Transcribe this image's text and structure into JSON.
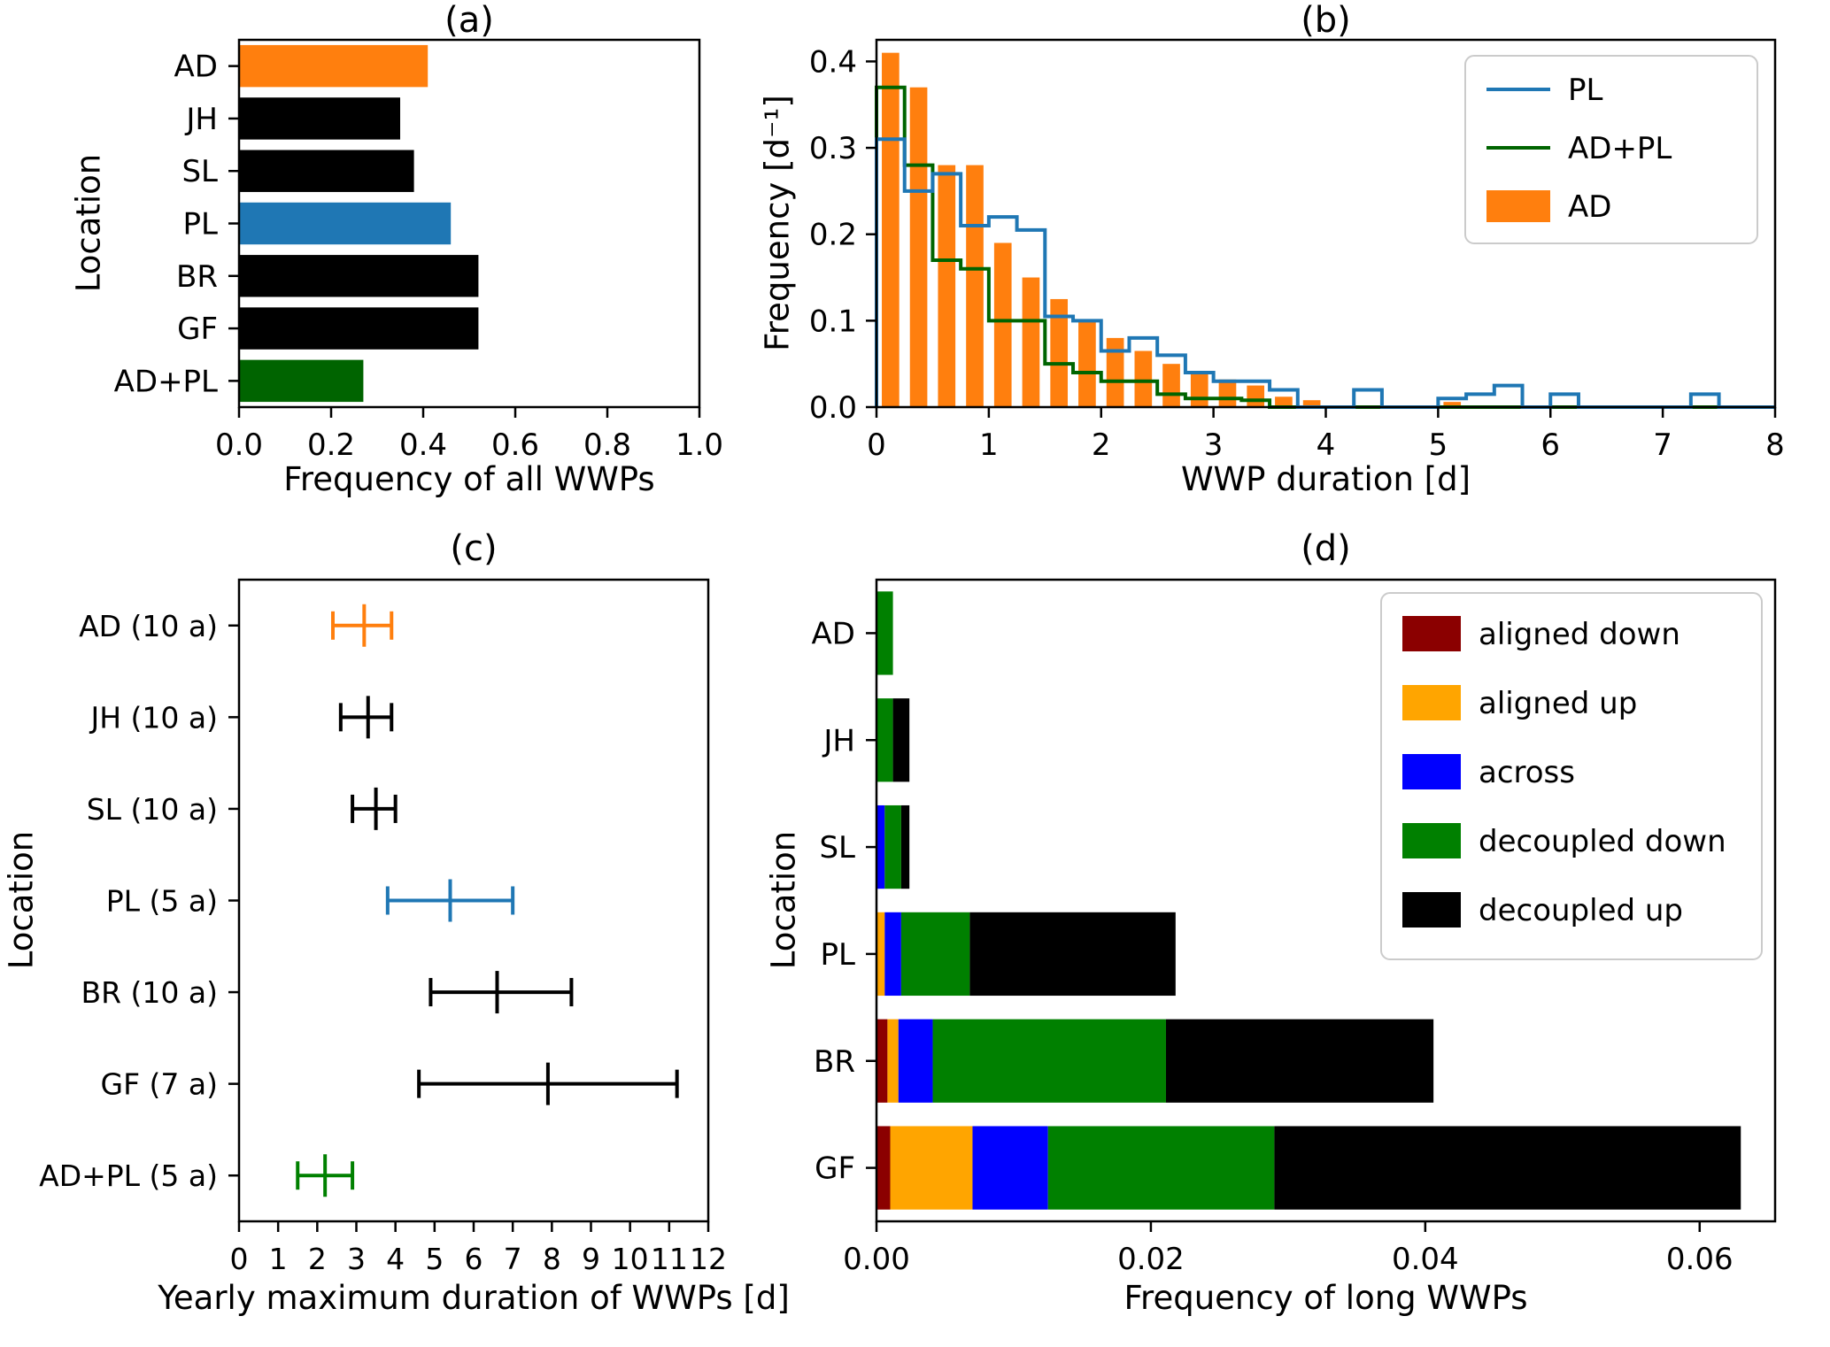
{
  "chart_data": [
    {
      "title": "(a)",
      "type": "bar",
      "orientation": "horizontal",
      "xlabel": "Frequency of all WWPs",
      "ylabel": "Location",
      "categories": [
        "AD",
        "JH",
        "SL",
        "PL",
        "BR",
        "GF",
        "AD+PL"
      ],
      "values": [
        0.41,
        0.35,
        0.38,
        0.46,
        0.52,
        0.52,
        0.27
      ],
      "bar_colors": [
        "#ff7f0e",
        "#000000",
        "#000000",
        "#1f77b4",
        "#000000",
        "#000000",
        "#006400"
      ],
      "xlim": [
        0,
        1.0
      ],
      "xticks": [
        0,
        0.2,
        0.4,
        0.6,
        0.8,
        1.0
      ],
      "xtick_labels": [
        "0.0",
        "0.2",
        "0.4",
        "0.6",
        "0.8",
        "1.0"
      ],
      "grid": false
    },
    {
      "title": "(b)",
      "type": "histogram",
      "xlabel": "WWP duration [d]",
      "ylabel": "Frequency [d⁻¹]",
      "xlim": [
        0,
        8
      ],
      "ylim": [
        0,
        0.425
      ],
      "bin_width": 0.25,
      "xticks": [
        0,
        1,
        2,
        3,
        4,
        5,
        6,
        7,
        8
      ],
      "xtick_labels": [
        "0",
        "1",
        "2",
        "3",
        "4",
        "5",
        "6",
        "7",
        "8"
      ],
      "yticks": [
        0,
        0.1,
        0.2,
        0.3,
        0.4
      ],
      "ytick_labels": [
        "0.0",
        "0.1",
        "0.2",
        "0.3",
        "0.4"
      ],
      "bar_series": {
        "name": "AD",
        "color": "#ff7f0e",
        "values": [
          0.41,
          0.37,
          0.28,
          0.28,
          0.19,
          0.15,
          0.125,
          0.1,
          0.08,
          0.065,
          0.05,
          0.04,
          0.032,
          0.025,
          0.012,
          0.008,
          0,
          0,
          0,
          0,
          0.006,
          0,
          0,
          0,
          0,
          0,
          0,
          0,
          0,
          0,
          0,
          0
        ]
      },
      "step_series": [
        {
          "name": "PL",
          "color": "#1f77b4",
          "values": [
            0.31,
            0.25,
            0.27,
            0.21,
            0.22,
            0.205,
            0.105,
            0.1,
            0.065,
            0.08,
            0.06,
            0.04,
            0.03,
            0.03,
            0.02,
            0,
            0,
            0.02,
            0,
            0,
            0.01,
            0.015,
            0.025,
            0,
            0.015,
            0,
            0,
            0,
            0,
            0.015,
            0,
            0
          ]
        },
        {
          "name": "AD+PL",
          "color": "#006400",
          "values": [
            0.37,
            0.28,
            0.17,
            0.16,
            0.1,
            0.1,
            0.05,
            0.04,
            0.03,
            0.03,
            0.015,
            0.01,
            0.01,
            0.008,
            0,
            0,
            0,
            0,
            0,
            0,
            0,
            0,
            0,
            0,
            0,
            0,
            0,
            0,
            0,
            0,
            0,
            0
          ]
        }
      ],
      "legend": {
        "position": "upper right",
        "entries": [
          {
            "label": "PL",
            "type": "line",
            "color": "#1f77b4"
          },
          {
            "label": "AD+PL",
            "type": "line",
            "color": "#006400"
          },
          {
            "label": "AD",
            "type": "patch",
            "color": "#ff7f0e"
          }
        ]
      }
    },
    {
      "title": "(c)",
      "type": "errorbar",
      "orientation": "horizontal",
      "xlabel": "Yearly maximum duration of WWPs [d]",
      "ylabel": "Location",
      "categories": [
        "AD (10 a)",
        "JH (10 a)",
        "SL (10 a)",
        "PL (5 a)",
        "BR (10 a)",
        "GF (7 a)",
        "AD+PL (5 a)"
      ],
      "centers": [
        3.2,
        3.3,
        3.5,
        5.4,
        6.6,
        7.9,
        2.2
      ],
      "lower": [
        2.4,
        2.6,
        2.9,
        3.8,
        4.9,
        4.6,
        1.5
      ],
      "upper": [
        3.9,
        3.9,
        4.0,
        7.0,
        8.5,
        11.2,
        2.9
      ],
      "colors": [
        "#ff7f0e",
        "#000000",
        "#000000",
        "#1f77b4",
        "#000000",
        "#000000",
        "#008000"
      ],
      "xlim": [
        0,
        12
      ],
      "xticks": [
        0,
        1,
        2,
        3,
        4,
        5,
        6,
        7,
        8,
        9,
        10,
        11,
        12
      ],
      "xtick_labels": [
        "0",
        "1",
        "2",
        "3",
        "4",
        "5",
        "6",
        "7",
        "8",
        "9",
        "10",
        "11",
        "12"
      ]
    },
    {
      "title": "(d)",
      "type": "stacked_bar",
      "orientation": "horizontal",
      "xlabel": "Frequency of long WWPs",
      "ylabel": "Location",
      "categories": [
        "AD",
        "JH",
        "SL",
        "PL",
        "BR",
        "GF"
      ],
      "series": [
        {
          "name": "aligned down",
          "color": "#8b0000",
          "values": [
            0,
            0,
            0,
            0,
            0.0008,
            0.001
          ]
        },
        {
          "name": "aligned up",
          "color": "#ffa500",
          "values": [
            0,
            0,
            0,
            0.0006,
            0.0008,
            0.006
          ]
        },
        {
          "name": "across",
          "color": "#0000ff",
          "values": [
            0,
            0,
            0.0006,
            0.0012,
            0.0025,
            0.0055
          ]
        },
        {
          "name": "decoupled down",
          "color": "#008000",
          "values": [
            0.0012,
            0.0012,
            0.0012,
            0.005,
            0.017,
            0.0165
          ]
        },
        {
          "name": "decoupled up",
          "color": "#000000",
          "values": [
            0,
            0.0012,
            0.0006,
            0.015,
            0.0195,
            0.034
          ]
        }
      ],
      "xlim": [
        0,
        0.0655
      ],
      "xticks": [
        0,
        0.02,
        0.04,
        0.06
      ],
      "xtick_labels": [
        "0.00",
        "0.02",
        "0.04",
        "0.06"
      ],
      "legend": {
        "position": "upper right",
        "entries": [
          {
            "label": "aligned down",
            "type": "patch",
            "color": "#8b0000"
          },
          {
            "label": "aligned up",
            "type": "patch",
            "color": "#ffa500"
          },
          {
            "label": "across",
            "type": "patch",
            "color": "#0000ff"
          },
          {
            "label": "decoupled down",
            "type": "patch",
            "color": "#008000"
          },
          {
            "label": "decoupled up",
            "type": "patch",
            "color": "#000000"
          }
        ]
      }
    }
  ]
}
